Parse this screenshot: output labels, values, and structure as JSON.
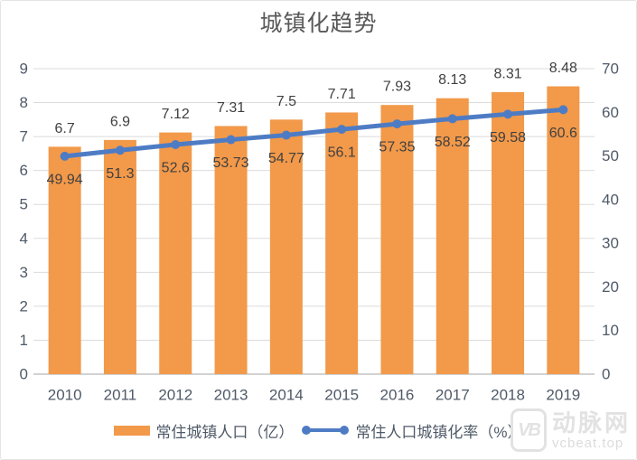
{
  "title": "城镇化趋势",
  "colors": {
    "bar": "#F2994A",
    "line": "#4E7CC4",
    "grid": "#DBDBDB",
    "baseline": "#D2D2D2",
    "axis_text": "#4F5A68",
    "label_text": "#404040",
    "watermark": "#E2E2E2"
  },
  "chart_data": {
    "type": "bar+line",
    "title": "城镇化趋势",
    "categories": [
      "2010",
      "2011",
      "2012",
      "2013",
      "2014",
      "2015",
      "2016",
      "2017",
      "2018",
      "2019"
    ],
    "series": [
      {
        "name": "常住城镇人口（亿）",
        "type": "bar",
        "axis": "left",
        "values": [
          6.7,
          6.9,
          7.12,
          7.31,
          7.5,
          7.71,
          7.93,
          8.13,
          8.31,
          8.48
        ]
      },
      {
        "name": "常住人口城镇化率（%）",
        "type": "line",
        "axis": "right",
        "values": [
          49.94,
          51.3,
          52.6,
          53.73,
          54.77,
          56.1,
          57.35,
          58.52,
          59.58,
          60.6
        ]
      }
    ],
    "axes": {
      "left": {
        "min": 0,
        "max": 9,
        "step": 1
      },
      "right": {
        "min": 0,
        "max": 70,
        "step": 10
      }
    },
    "grid": true,
    "data_labels": true,
    "legend_position": "bottom"
  },
  "watermark": {
    "logo_text": "VB",
    "name": "动脉网",
    "url": "vcbeat.top"
  }
}
